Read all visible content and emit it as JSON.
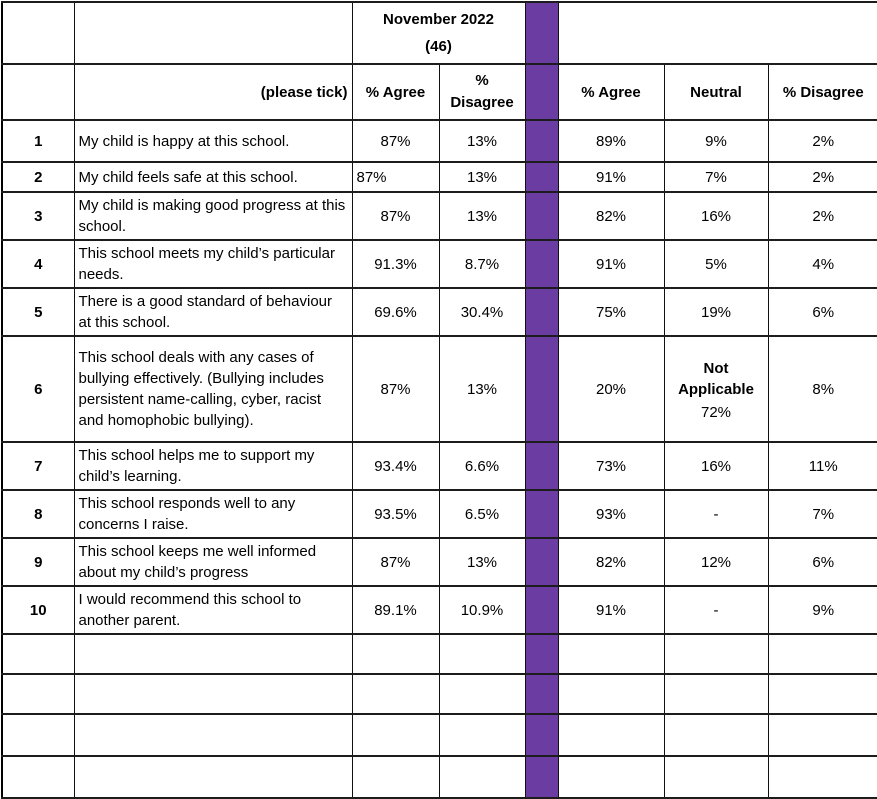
{
  "colors": {
    "accent_purple": "#6b3da3",
    "grid_dark": "#1c1c1c",
    "grid_gray": "#8d8d8d"
  },
  "table": {
    "header": {
      "survey_title_line1": "November 2022",
      "survey_title_line2": "(46)",
      "please_tick_label": "(please tick)",
      "col_agree_2022": "% Agree",
      "col_disagree_2022": "% Disagree",
      "col_agree": "% Agree",
      "col_neutral": "Neutral",
      "col_disagree": "% Disagree"
    },
    "rows": [
      {
        "num": "1",
        "statement": "My child is happy at this school.",
        "agree_2022": "87%",
        "disagree_2022": "13%",
        "agree": "89%",
        "neutral": "9%",
        "disagree": "2%"
      },
      {
        "num": "2",
        "statement": "My child feels safe at this school.",
        "agree_2022": "87%",
        "disagree_2022": "13%",
        "agree": "91%",
        "neutral": "7%",
        "disagree": "2%"
      },
      {
        "num": "3",
        "statement": "My child is making good progress at this school.",
        "agree_2022": "87%",
        "disagree_2022": "13%",
        "agree": "82%",
        "neutral": "16%",
        "disagree": "2%"
      },
      {
        "num": "4",
        "statement": "This school meets my child’s particular needs.",
        "agree_2022": "91.3%",
        "disagree_2022": "8.7%",
        "agree": "91%",
        "neutral": "5%",
        "disagree": "4%"
      },
      {
        "num": "5",
        "statement": "There is a good standard of behaviour at this school.",
        "agree_2022": "69.6%",
        "disagree_2022": "30.4%",
        "agree": "75%",
        "neutral": "19%",
        "disagree": "6%"
      },
      {
        "num": "6",
        "statement": "This school deals with any cases of bullying effectively. (Bullying includes persistent name-calling, cyber, racist and homophobic bullying).",
        "agree_2022": "87%",
        "disagree_2022": "13%",
        "agree": "20%",
        "neutral_label": "Not Applicable",
        "neutral": "72%",
        "disagree": "8%"
      },
      {
        "num": "7",
        "statement": "This school helps me to support my child’s learning.",
        "agree_2022": "93.4%",
        "disagree_2022": "6.6%",
        "agree": "73%",
        "neutral": "16%",
        "disagree": "11%"
      },
      {
        "num": "8",
        "statement": "This school responds well to any concerns I raise.",
        "agree_2022": "93.5%",
        "disagree_2022": "6.5%",
        "agree": "93%",
        "neutral": "-",
        "disagree": "7%"
      },
      {
        "num": "9",
        "statement": "This school keeps me well informed about my child’s progress",
        "agree_2022": "87%",
        "disagree_2022": "13%",
        "agree": "82%",
        "neutral": "12%",
        "disagree": "6%"
      },
      {
        "num": "10",
        "statement": "I would recommend this school to another parent.",
        "agree_2022": "89.1%",
        "disagree_2022": "10.9%",
        "agree": "91%",
        "neutral": "-",
        "disagree": "9%"
      }
    ],
    "empty_row_count": 4
  }
}
